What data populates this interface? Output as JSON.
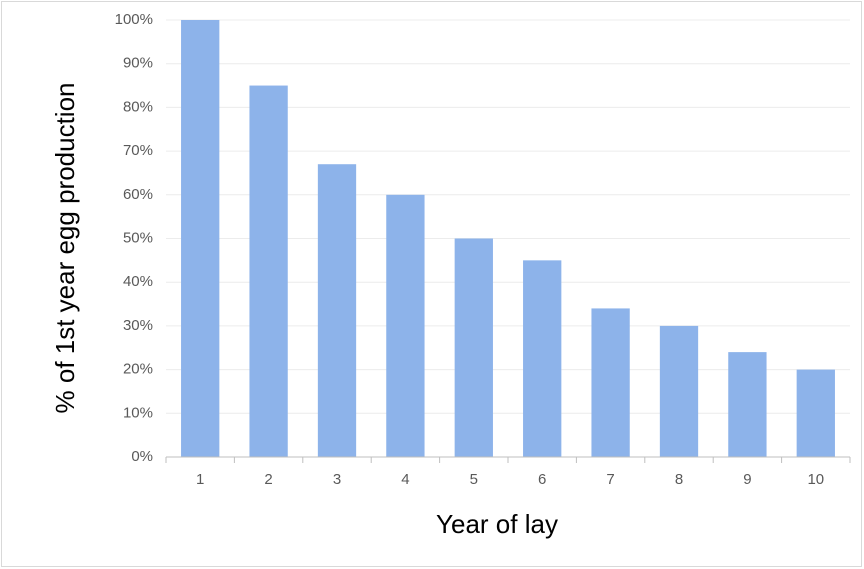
{
  "chart_data": {
    "type": "bar",
    "x_label": "Year of lay",
    "y_label": "% of 1st year egg production",
    "categories": [
      "1",
      "2",
      "3",
      "4",
      "5",
      "6",
      "7",
      "8",
      "9",
      "10"
    ],
    "values": [
      100,
      85,
      67,
      60,
      50,
      45,
      34,
      30,
      24,
      20
    ],
    "color": "#8db3ea",
    "ylim": [
      0,
      100
    ],
    "yticks": [
      {
        "value": 0,
        "label": "0%"
      },
      {
        "value": 10,
        "label": "10%"
      },
      {
        "value": 20,
        "label": "20%"
      },
      {
        "value": 30,
        "label": "30%"
      },
      {
        "value": 40,
        "label": "40%"
      },
      {
        "value": 50,
        "label": "50%"
      },
      {
        "value": 60,
        "label": "60%"
      },
      {
        "value": 70,
        "label": "70%"
      },
      {
        "value": 80,
        "label": "80%"
      },
      {
        "value": 90,
        "label": "90%"
      },
      {
        "value": 100,
        "label": "100%"
      }
    ],
    "grid": true
  }
}
